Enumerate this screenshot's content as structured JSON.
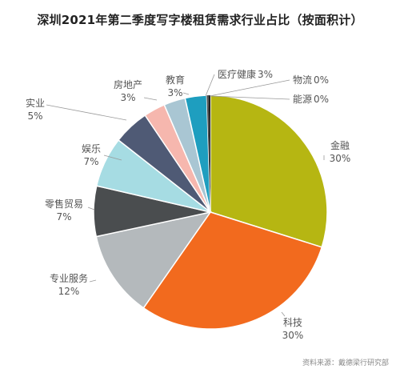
{
  "chart_data": {
    "type": "pie",
    "title": "深圳2021年第二季度写字楼租赁需求行业占比（按面积计）",
    "slices": [
      {
        "label": "金融",
        "value": 30,
        "display": "30%",
        "color": "#B6B612"
      },
      {
        "label": "科技",
        "value": 30,
        "display": "30%",
        "color": "#F26A1E"
      },
      {
        "label": "专业服务",
        "value": 12,
        "display": "12%",
        "color": "#B4B9BC"
      },
      {
        "label": "零售贸易",
        "value": 7,
        "display": "7%",
        "color": "#4A4D4F"
      },
      {
        "label": "娱乐",
        "value": 7,
        "display": "7%",
        "color": "#A6DCE3"
      },
      {
        "label": "实业",
        "value": 5,
        "display": "5%",
        "color": "#4F5A75"
      },
      {
        "label": "房地产",
        "value": 3,
        "display": "3%",
        "color": "#F6B7AE"
      },
      {
        "label": "教育",
        "value": 3,
        "display": "3%",
        "color": "#A9C6D3"
      },
      {
        "label": "医疗健康",
        "value": 3,
        "display": "3%",
        "color": "#1E9EBF"
      },
      {
        "label": "物流",
        "value": 0,
        "display": "0%",
        "color": "#4D4D4D"
      },
      {
        "label": "能源",
        "value": 0,
        "display": "0%",
        "color": "#222222"
      }
    ],
    "legend": "none"
  },
  "source": "资料来源：戴德梁行研究部"
}
